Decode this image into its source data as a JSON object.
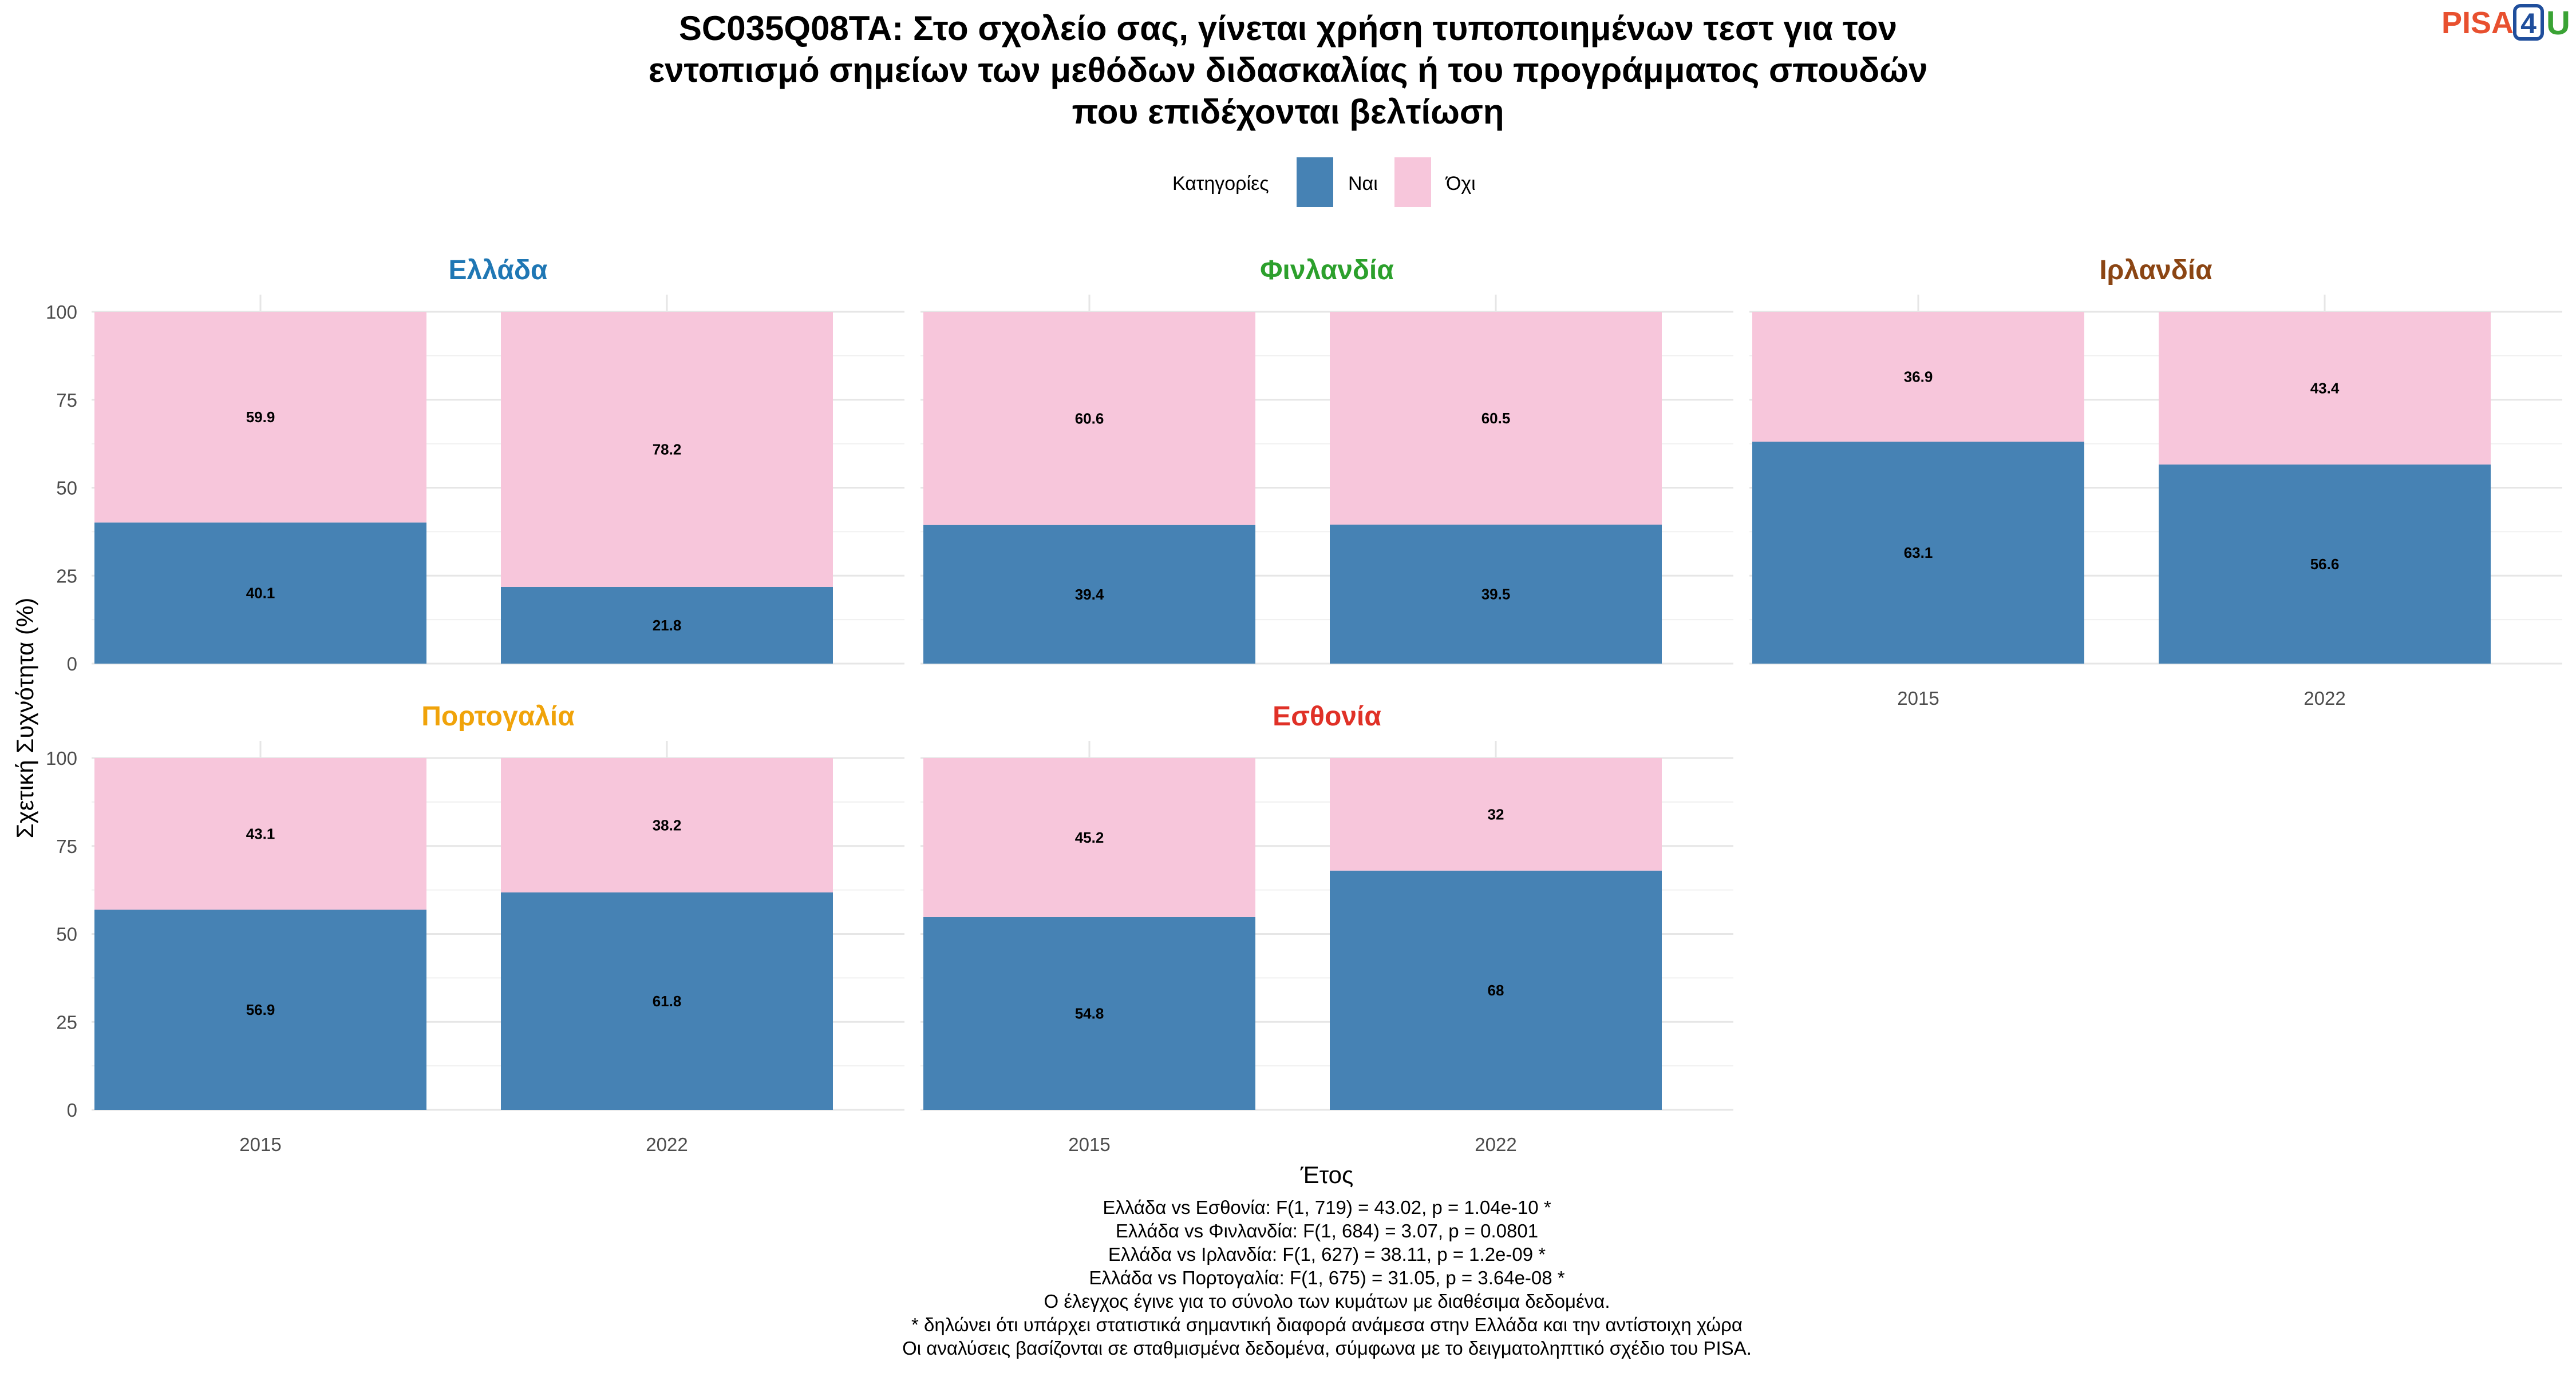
{
  "title_lines": [
    "SC035Q08TA: Στο σχολείο σας, γίνεται χρήση τυποποιημένων τεστ για τον",
    "εντοπισμό σημείων των μεθόδων διδασκαλίας ή του προγράμματος σπουδών",
    "που επιδέχονται βελτίωση"
  ],
  "logo": {
    "text": "PISA",
    "number": "4",
    "letter": "U",
    "colors": {
      "text": "#e8502f",
      "number": "#1f4e9c",
      "letter": "#3aa335"
    }
  },
  "legend": {
    "title": "Κατηγορίες",
    "items": [
      {
        "label": "Ναι",
        "color": "#4682b4"
      },
      {
        "label": "Όχι",
        "color": "#f7c6db"
      }
    ]
  },
  "axis": {
    "ylabel": "Σχετική Συχνότητα (%)",
    "xlabel": "Έτος",
    "yticks": [
      "0",
      "25",
      "50",
      "75",
      "100"
    ]
  },
  "chart_data": {
    "type": "bar",
    "stacked": true,
    "facets": [
      {
        "country": "Ελλάδα",
        "color": "#1f77b4",
        "categories": [
          "2015",
          "2022"
        ],
        "series": [
          {
            "name": "Ναι",
            "values": [
              40.1,
              21.8
            ]
          },
          {
            "name": "Όχι",
            "values": [
              59.9,
              78.2
            ]
          }
        ]
      },
      {
        "country": "Φινλανδία",
        "color": "#2ca02c",
        "categories": [
          "2015",
          "2022"
        ],
        "series": [
          {
            "name": "Ναι",
            "values": [
              39.4,
              39.5
            ]
          },
          {
            "name": "Όχι",
            "values": [
              60.6,
              60.5
            ]
          }
        ]
      },
      {
        "country": "Ιρλανδία",
        "color": "#8b4513",
        "categories": [
          "2015",
          "2022"
        ],
        "series": [
          {
            "name": "Ναι",
            "values": [
              63.1,
              56.6
            ]
          },
          {
            "name": "Όχι",
            "values": [
              36.9,
              43.4
            ]
          }
        ]
      },
      {
        "country": "Πορτογαλία",
        "color": "#f0a30a",
        "categories": [
          "2015",
          "2022"
        ],
        "series": [
          {
            "name": "Ναι",
            "values": [
              56.9,
              61.8
            ]
          },
          {
            "name": "Όχι",
            "values": [
              43.1,
              38.2
            ]
          }
        ]
      },
      {
        "country": "Εσθονία",
        "color": "#e03127",
        "categories": [
          "2015",
          "2022"
        ],
        "series": [
          {
            "name": "Ναι",
            "values": [
              54.8,
              68
            ]
          },
          {
            "name": "Όχι",
            "values": [
              45.2,
              32
            ]
          }
        ]
      }
    ],
    "ylim": [
      0,
      100
    ],
    "grid": true,
    "legend_position": "top"
  },
  "footnotes": [
    "Ελλάδα vs Εσθονία: F(1, 719) = 43.02, p = 1.04e-10 *",
    "Ελλάδα vs Φινλανδία: F(1, 684) = 3.07, p = 0.0801",
    "Ελλάδα vs Ιρλανδία: F(1, 627) = 38.11, p = 1.2e-09 *",
    "Ελλάδα vs Πορτογαλία: F(1, 675) = 31.05, p = 3.64e-08 *",
    "Ο έλεγχος έγινε για το σύνολο των κυμάτων με διαθέσιμα δεδομένα.",
    "* δηλώνει ότι υπάρχει στατιστικά σημαντική διαφορά ανάμεσα στην Ελλάδα και την αντίστοιχη χώρα",
    "Οι αναλύσεις βασίζονται σε σταθμισμένα δεδομένα, σύμφωνα με το δειγματοληπτικό σχέδιο του PISA."
  ]
}
